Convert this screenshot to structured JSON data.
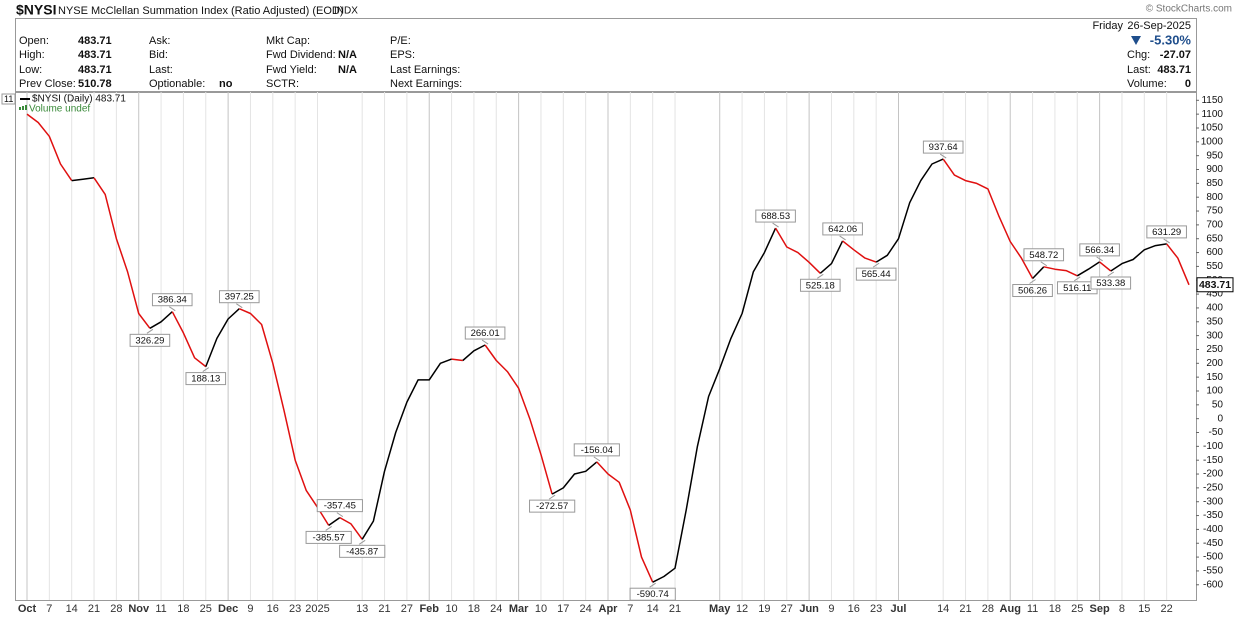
{
  "header": {
    "symbol": "$NYSI",
    "name": "NYSE McClellan Summation Index (Ratio Adjusted) (EOD)",
    "exchange": "INDX",
    "fields": [
      [
        {
          "label": "Open:",
          "value": "483.71"
        },
        {
          "label": "High:",
          "value": "483.71"
        },
        {
          "label": "Low:",
          "value": "483.71"
        },
        {
          "label": "Prev Close:",
          "value": "510.78"
        }
      ],
      [
        {
          "label": "Ask:"
        },
        {
          "label": "Bid:"
        },
        {
          "label": "Last:"
        },
        {
          "label": "Optionable:",
          "value": "no"
        }
      ],
      [
        {
          "label": "Mkt Cap:"
        },
        {
          "label": "Fwd Dividend:",
          "value": "N/A"
        },
        {
          "label": "Fwd Yield:",
          "value": "N/A"
        },
        {
          "label": "SCTR:"
        }
      ],
      [
        {
          "label": "P/E:"
        },
        {
          "label": "EPS:"
        },
        {
          "label": "Last Earnings:"
        },
        {
          "label": "Next Earnings:"
        }
      ]
    ],
    "day": "Friday",
    "date": "26-Sep-2025",
    "change_pct": "-5.30%",
    "right_fields": [
      {
        "label": "Chg:",
        "value": "-27.07"
      },
      {
        "label": "Last:",
        "value": "483.71"
      },
      {
        "label": "Volume:",
        "value": "0"
      }
    ],
    "watermark": "© StockCharts.com"
  },
  "chart_data": {
    "type": "line",
    "period_tag": "11",
    "volume_legend": "Volume undef",
    "categories": [
      "Oct",
      null,
      "7",
      null,
      "14",
      null,
      "21",
      null,
      "28",
      null,
      "Nov",
      null,
      "11",
      null,
      "18",
      null,
      "25",
      null,
      "Dec",
      null,
      "9",
      null,
      "16",
      null,
      "23",
      null,
      "2025",
      null,
      null,
      null,
      "13",
      null,
      "21",
      null,
      "27",
      null,
      "Feb",
      null,
      "10",
      null,
      "18",
      null,
      "24",
      null,
      "Mar",
      null,
      "10",
      null,
      "17",
      null,
      "24",
      null,
      "Apr",
      null,
      "7",
      null,
      "14",
      null,
      "21",
      null,
      null,
      null,
      "May",
      null,
      "12",
      null,
      "19",
      null,
      "27",
      null,
      "Jun",
      null,
      "9",
      null,
      "16",
      null,
      "23",
      null,
      "Jul",
      null,
      null,
      null,
      "14",
      null,
      "21",
      null,
      "28",
      null,
      "Aug",
      null,
      "11",
      null,
      "18",
      null,
      "25",
      null,
      "Sep",
      null,
      "8",
      null,
      "15",
      null,
      "22",
      null,
      null
    ],
    "series": [
      {
        "name": "$NYSI (Daily) 483.71",
        "up_color": "#000000",
        "down_color": "#e01010",
        "values": [
          1100,
          1070,
          1020,
          920,
          860,
          865,
          870,
          810,
          650,
          530,
          380,
          326.29,
          350,
          386.34,
          310,
          220,
          188.13,
          290,
          360,
          397.25,
          380,
          340,
          200,
          30,
          -150,
          -260,
          -320,
          -385.57,
          -357.45,
          -380,
          -435.87,
          -370,
          -190,
          -50,
          60,
          140,
          140,
          200,
          215,
          210,
          245,
          266.01,
          210,
          170,
          110,
          0,
          -130,
          -272.57,
          -250,
          -200,
          -190,
          -156.04,
          -200,
          -230,
          -330,
          -500,
          -590.74,
          -570,
          -540,
          -330,
          -100,
          80,
          180,
          290,
          380,
          530,
          600,
          688.53,
          620,
          600,
          565,
          525.18,
          560,
          642.06,
          610,
          580,
          565.44,
          590,
          650,
          780,
          860,
          920,
          937.64,
          880,
          860,
          850,
          830,
          730,
          640,
          580,
          506.26,
          548.72,
          540,
          535,
          516.11,
          540,
          566.34,
          533.38,
          560,
          575,
          610,
          625,
          631.29,
          580,
          483.71
        ],
        "value_labels": [
          null,
          null,
          null,
          null,
          null,
          null,
          null,
          null,
          null,
          null,
          null,
          "326.29",
          null,
          "386.34",
          null,
          null,
          "188.13",
          null,
          null,
          "397.25",
          null,
          null,
          null,
          null,
          null,
          null,
          null,
          "-385.57",
          "-357.45",
          null,
          "-435.87",
          null,
          null,
          null,
          null,
          null,
          null,
          null,
          null,
          null,
          null,
          "266.01",
          null,
          null,
          null,
          null,
          null,
          "-272.57",
          null,
          null,
          null,
          "-156.04",
          null,
          null,
          null,
          null,
          "-590.74",
          null,
          null,
          null,
          null,
          null,
          null,
          null,
          null,
          null,
          null,
          "688.53",
          null,
          null,
          null,
          "525.18",
          null,
          "642.06",
          null,
          null,
          "565.44",
          null,
          null,
          null,
          null,
          null,
          "937.64",
          null,
          null,
          null,
          null,
          null,
          null,
          null,
          "506.26",
          "548.72",
          null,
          null,
          "516.11",
          null,
          "566.34",
          "533.38",
          null,
          null,
          null,
          null,
          "631.29",
          null,
          null
        ]
      }
    ],
    "ylim": [
      -655,
      1180
    ],
    "yticks": [
      1150,
      1100,
      1050,
      1000,
      950,
      900,
      850,
      800,
      750,
      700,
      650,
      600,
      550,
      500,
      450,
      400,
      350,
      300,
      250,
      200,
      150,
      100,
      50,
      0,
      -50,
      -100,
      -150,
      -200,
      -250,
      -300,
      -350,
      -400,
      -450,
      -500,
      -550,
      -600
    ],
    "grid": "x",
    "axis_side": "right"
  }
}
